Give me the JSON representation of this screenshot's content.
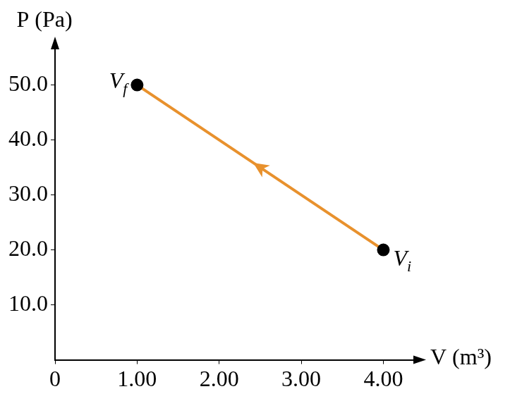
{
  "chart_data": {
    "type": "line",
    "x_label": "V (m³)",
    "y_label": "P (Pa)",
    "x": [
      4.0,
      1.0
    ],
    "values": [
      20,
      50
    ],
    "color": "#e8912d",
    "marker": "circle",
    "xlim": [
      0,
      4.4
    ],
    "ylim": [
      0,
      57
    ],
    "xticks": [
      {
        "value": 0,
        "label": "0"
      },
      {
        "value": 1,
        "label": "1.00"
      },
      {
        "value": 2,
        "label": "2.00"
      },
      {
        "value": 3,
        "label": "3.00"
      },
      {
        "value": 4,
        "label": "4.00"
      }
    ],
    "yticks": [
      {
        "value": 10,
        "label": "10.0"
      },
      {
        "value": 20,
        "label": "20.0"
      },
      {
        "value": 30,
        "label": "30.0"
      },
      {
        "value": 40,
        "label": "40.0"
      },
      {
        "value": 50,
        "label": "50.0"
      }
    ],
    "grid": false,
    "annotations": [
      {
        "text": "V",
        "subscript": "f",
        "x": 1,
        "y": 50
      },
      {
        "text": "V",
        "subscript": "i",
        "x": 4,
        "y": 20
      }
    ]
  }
}
